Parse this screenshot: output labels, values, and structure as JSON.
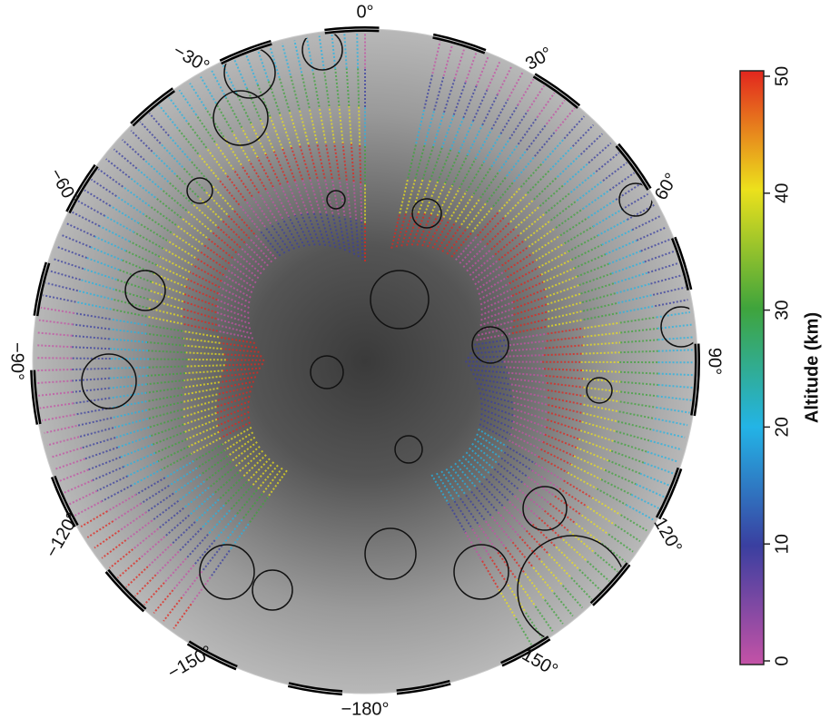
{
  "map": {
    "longitude_labels": [
      "−180°",
      "150°",
      "120°",
      "90°",
      "60°",
      "30°",
      "0°",
      "−30°",
      "−60°",
      "−90°",
      "−120°",
      "−150°"
    ]
  },
  "colorbar": {
    "label": "Altitude (km)",
    "range": [
      0,
      50
    ],
    "ticks": [
      0,
      10,
      20,
      30,
      40,
      50
    ],
    "colors": [
      "#c452a6",
      "#3a3fa0",
      "#23b4e6",
      "#3fa43c",
      "#ece11c",
      "#e2261e"
    ]
  }
}
